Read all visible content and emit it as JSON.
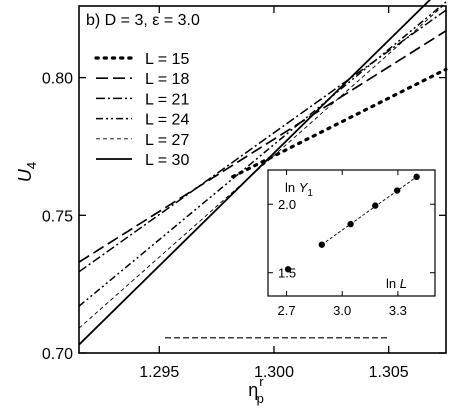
{
  "chart_data": [
    {
      "type": "line",
      "title": "b) D = 3, ε = 3.0",
      "xlabel": "η_p^r",
      "ylabel": "U_4",
      "xlim": [
        1.2915,
        1.3075
      ],
      "ylim": [
        0.7,
        0.826
      ],
      "xticks": [
        1.295,
        1.3,
        1.305
      ],
      "xtick_labels": [
        "1.295",
        "1.300",
        "1.305"
      ],
      "yticks": [
        0.7,
        0.75,
        0.8
      ],
      "ytick_labels": [
        "0.70",
        "0.75",
        "0.80"
      ],
      "grid": false,
      "legend_position": "top-left",
      "series": [
        {
          "name": "L = 15",
          "line_style": "dotted",
          "x": [
            1.2982,
            1.3075
          ],
          "y": [
            0.764,
            0.803
          ]
        },
        {
          "name": "L = 18",
          "line_style": "long-dash",
          "x": [
            1.2915,
            1.3075
          ],
          "y": [
            0.733,
            0.817
          ]
        },
        {
          "name": "L = 21",
          "line_style": "dash-dot",
          "x": [
            1.2915,
            1.3075
          ],
          "y": [
            0.7295,
            0.8245
          ]
        },
        {
          "name": "L = 24",
          "line_style": "dash-dot-dot",
          "x": [
            1.2915,
            1.3075
          ],
          "y": [
            0.717,
            0.8275
          ]
        },
        {
          "name": "L = 27",
          "line_style": "short-dash",
          "x": [
            1.2915,
            1.3075
          ],
          "y": [
            0.709,
            0.827
          ]
        },
        {
          "name": "L = 30",
          "line_style": "solid",
          "x": [
            1.2915,
            1.3075
          ],
          "y": [
            0.703,
            0.834
          ]
        }
      ],
      "reference_line": {
        "style": "dashed",
        "x": [
          1.29525,
          1.30505
        ],
        "y": [
          0.7055,
          0.7055
        ]
      }
    },
    {
      "type": "scatter",
      "title": "",
      "xlabel": "ln L",
      "ylabel": "ln Y_1",
      "xlim": [
        2.6,
        3.5
      ],
      "ylim": [
        1.33,
        2.25
      ],
      "xticks": [
        2.7,
        3.0,
        3.3
      ],
      "xtick_labels": [
        "2.7",
        "3.0",
        "3.3"
      ],
      "yticks": [
        1.5,
        2.0
      ],
      "ytick_labels": [
        "1.5",
        "2.0"
      ],
      "grid": false,
      "points": {
        "x": [
          2.708,
          2.89,
          3.045,
          3.178,
          3.296,
          3.401
        ],
        "y": [
          1.525,
          1.705,
          1.855,
          1.99,
          2.1,
          2.2
        ]
      },
      "fit_line": {
        "style": "dashed",
        "x": [
          2.89,
          3.401
        ],
        "y": [
          1.705,
          2.2
        ]
      }
    }
  ]
}
